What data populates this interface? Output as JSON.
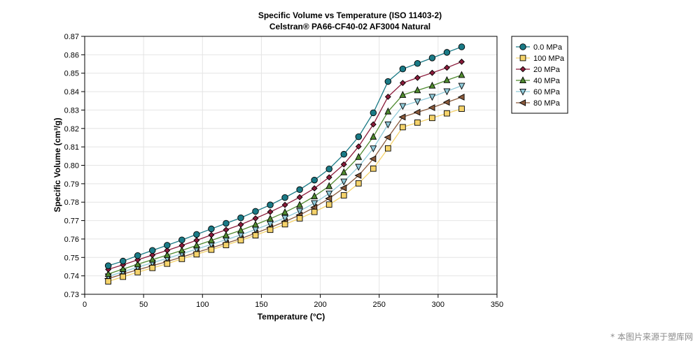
{
  "chart_data": {
    "type": "line",
    "title": "Specific Volume vs Temperature (ISO 11403-2)",
    "subtitle": "Celstran® PA66-CF40-02 AF3004 Natural",
    "xlabel": "Temperature (°C)",
    "ylabel": "Specific Volume (cm³/g)",
    "xlim": [
      0,
      350
    ],
    "ylim": [
      0.73,
      0.87
    ],
    "xticks": [
      "0",
      "50",
      "100",
      "150",
      "200",
      "250",
      "300",
      "350"
    ],
    "yticks": [
      "0.73",
      "0.74",
      "0.75",
      "0.76",
      "0.77",
      "0.78",
      "0.79",
      "0.80",
      "0.81",
      "0.82",
      "0.83",
      "0.84",
      "0.85",
      "0.86",
      "0.87"
    ],
    "grid": true,
    "legend_position": "top-right-outside",
    "x": [
      20,
      32.5,
      45,
      57.5,
      70,
      82.5,
      95,
      107.5,
      120,
      132.5,
      145,
      157.5,
      170,
      182.5,
      195,
      207.5,
      220,
      232.5,
      245,
      257.5,
      270,
      282.5,
      295,
      307.5,
      320
    ],
    "series": [
      {
        "name": "0.0 MPa",
        "color": "#1a7a86",
        "marker": "circle",
        "values": [
          0.7455,
          0.748,
          0.751,
          0.7538,
          0.7566,
          0.7595,
          0.7625,
          0.7655,
          0.7685,
          0.7715,
          0.775,
          0.7785,
          0.7825,
          0.7868,
          0.792,
          0.798,
          0.806,
          0.8155,
          0.8285,
          0.8455,
          0.8523,
          0.8553,
          0.8583,
          0.8613,
          0.8643
        ]
      },
      {
        "name": "100 MPa",
        "color": "#f5d36b",
        "marker": "square",
        "values": [
          0.737,
          0.7395,
          0.742,
          0.7443,
          0.7466,
          0.7492,
          0.7517,
          0.7542,
          0.7567,
          0.7593,
          0.762,
          0.765,
          0.768,
          0.7712,
          0.7747,
          0.7787,
          0.7837,
          0.7902,
          0.7982,
          0.8092,
          0.8207,
          0.8232,
          0.8257,
          0.8282,
          0.8307
        ]
      },
      {
        "name": "20 MPa",
        "color": "#8b1a3a",
        "marker": "diamond",
        "values": [
          0.7435,
          0.746,
          0.7487,
          0.7513,
          0.7538,
          0.7565,
          0.7593,
          0.7622,
          0.765,
          0.7678,
          0.7712,
          0.7747,
          0.7785,
          0.7827,
          0.7875,
          0.7935,
          0.8005,
          0.8102,
          0.8222,
          0.8372,
          0.8447,
          0.8475,
          0.8502,
          0.853,
          0.8562
        ]
      },
      {
        "name": "40 MPa",
        "color": "#4f8a2f",
        "marker": "triangle-up",
        "values": [
          0.741,
          0.7437,
          0.7463,
          0.7488,
          0.7513,
          0.7538,
          0.7565,
          0.7592,
          0.762,
          0.7647,
          0.7678,
          0.771,
          0.7745,
          0.7785,
          0.7832,
          0.7887,
          0.7962,
          0.8045,
          0.8155,
          0.8292,
          0.8382,
          0.8407,
          0.8432,
          0.8462,
          0.849
        ]
      },
      {
        "name": "60 MPa",
        "color": "#8fc9d8",
        "marker": "triangle-down",
        "values": [
          0.7397,
          0.7422,
          0.7447,
          0.7471,
          0.7495,
          0.752,
          0.7545,
          0.7571,
          0.7597,
          0.7622,
          0.7652,
          0.7682,
          0.7715,
          0.7752,
          0.7795,
          0.7847,
          0.7912,
          0.7992,
          0.8092,
          0.8222,
          0.8322,
          0.8347,
          0.8372,
          0.8402,
          0.8432
        ]
      },
      {
        "name": "80 MPa",
        "color": "#8a5a3c",
        "marker": "triangle-left",
        "values": [
          0.7385,
          0.741,
          0.7433,
          0.7455,
          0.7478,
          0.7502,
          0.7527,
          0.7552,
          0.7577,
          0.7602,
          0.7632,
          0.7662,
          0.7695,
          0.773,
          0.7772,
          0.782,
          0.7877,
          0.7945,
          0.8035,
          0.8152,
          0.8262,
          0.8288,
          0.8313,
          0.8342,
          0.837
        ]
      }
    ]
  },
  "watermark": "* 本图片来源于塑库网"
}
